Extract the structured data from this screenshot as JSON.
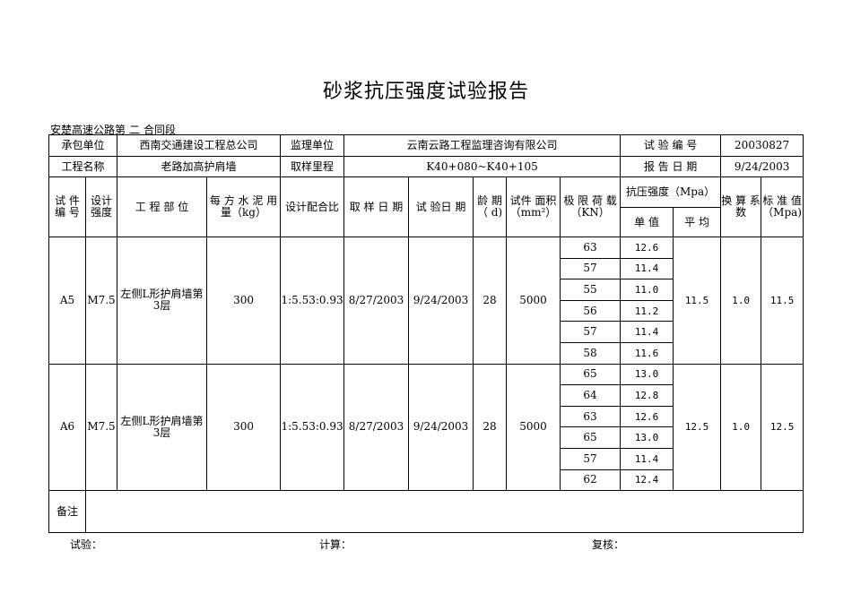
{
  "title": "砂浆抗压强度试验报告",
  "section": {
    "prefix": "安楚高速公路第",
    "number": "二",
    "suffix": "合同段"
  },
  "info": {
    "contractor_label": "承包单位",
    "contractor": "西南交通建设工程总公司",
    "supervisor_label": "监理单位",
    "supervisor": "云南云路工程监理咨询有限公司",
    "test_no_label": "试 验 编 号",
    "test_no": "20030827",
    "project_label": "工程名称",
    "project": "老路加高护肩墙",
    "chainage_label": "取样里程",
    "chainage": "K40+080~K40+105",
    "report_date_label": "报 告 日 期",
    "report_date": "9/24/2003"
  },
  "headers": {
    "specimen_no": "试 件 编 号",
    "design_strength": "设计 强度",
    "location": "工 程 部 位",
    "cement": "每 方 水 泥 用 量（kg）",
    "mix_ratio": "设计配合比",
    "sample_date": "取 样 日 期",
    "test_date": "试 验日 期",
    "age": "龄 期（ d)",
    "area": "试件 面积（mm²）",
    "load": "极 限 荷 载（KN）",
    "strength": "抗压强度（Mpa）",
    "single": "单 值",
    "average": "平 均",
    "factor": "换 算 系 数",
    "standard": "标 准 值 （Mpa)"
  },
  "specimens": [
    {
      "no": "A5",
      "design": "M7.5",
      "location": "左侧L形护肩墙第3层",
      "cement": "300",
      "ratio": "1:5.53:0.93",
      "sample_date": "8/27/2003",
      "test_date": "9/24/2003",
      "age": "28",
      "area": "5000",
      "loads": [
        "63",
        "57",
        "55",
        "56",
        "57",
        "58"
      ],
      "singles": [
        "12.6",
        "11.4",
        "11.0",
        "11.2",
        "11.4",
        "11.6"
      ],
      "average": "11.5",
      "factor": "1.0",
      "standard": "11.5"
    },
    {
      "no": "A6",
      "design": "M7.5",
      "location": "左侧L形护肩墙第3层",
      "cement": "300",
      "ratio": "1:5.53:0.93",
      "sample_date": "8/27/2003",
      "test_date": "9/24/2003",
      "age": "28",
      "area": "5000",
      "loads": [
        "65",
        "64",
        "63",
        "65",
        "57",
        "62"
      ],
      "singles": [
        "13.0",
        "12.8",
        "12.6",
        "13.0",
        "11.4",
        "12.4"
      ],
      "average": "12.5",
      "factor": "1.0",
      "standard": "12.5"
    }
  ],
  "remarks_label": "备注",
  "remarks": "",
  "footer": {
    "tester": "试验：",
    "calculator": "计算：",
    "reviewer": "复核："
  }
}
